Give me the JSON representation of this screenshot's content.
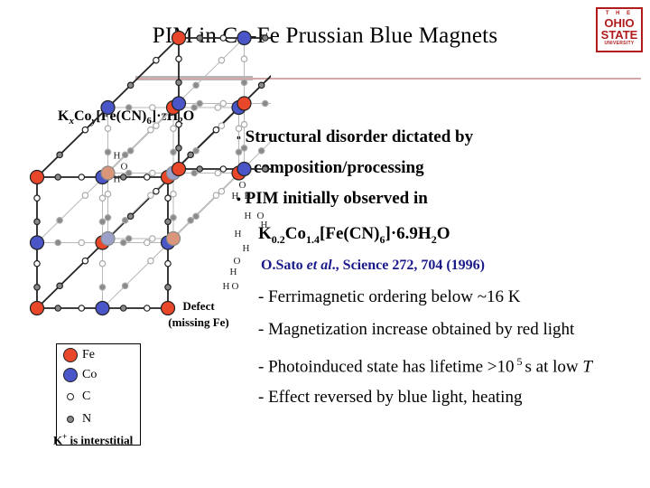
{
  "slide": {
    "title": "PIM in Co-Fe Prussian Blue Magnets",
    "logo": {
      "line1": "T H E",
      "line2": "OHIO",
      "line3": "STATE",
      "line4": "UNIVERSITY"
    },
    "formula": {
      "k": "K",
      "x": "x",
      "co": "Co",
      "y": "y",
      "bracket": "[Fe(CN)",
      "six": "6",
      "close": "]",
      "dot": "·",
      "z": "z",
      "h": "H",
      "two": "2",
      "o": "O"
    },
    "bullets": [
      {
        "marker": "•",
        "line1": "Structural disorder dictated by",
        "line2": "composition/processing"
      },
      {
        "marker": "•",
        "line1": "PIM initially observed in"
      }
    ],
    "compound": {
      "k": "K",
      "k_sub": "0.2",
      "co": "Co",
      "co_sub": "1.4",
      "fe": "[Fe(CN)",
      "six": "6",
      "close": "]",
      "dot": "·",
      "water": "6.9H",
      "two": "2",
      "o": "O"
    },
    "reference": {
      "authors": "O.Sato ",
      "etal": "et al",
      "rest": "., Science 272, 704 (1996)"
    },
    "sub_bullets": [
      "- Ferrimagnetic ordering below ~16 K",
      "- Magnetization increase obtained by red light",
      {
        "a": "- Photoinduced state has lifetime >10",
        "exp": "5",
        "b": "s at low ",
        "t": "T"
      },
      "- Effect reversed by blue light, heating"
    ],
    "defect_label": {
      "line1": "Defect",
      "line2": "(missing Fe)"
    },
    "legend": [
      {
        "label": "Fe",
        "color": "#e8472a"
      },
      {
        "label": "Co",
        "color": "#4a55c8"
      },
      {
        "label": "C",
        "color": "#ffffff"
      },
      {
        "label": "N",
        "color": "#8a8a8a"
      }
    ],
    "k_note": {
      "k": "K",
      "plus": "+",
      "text": " is interstitial"
    },
    "water_labels": {
      "o": "O",
      "h": "H"
    },
    "colors": {
      "fe": "#e8472a",
      "co": "#4a55c8",
      "fe_faded": "#d9967a",
      "co_faded": "#9aa0c8",
      "rule": "#d4a8a8",
      "logo": "#b01c1c"
    }
  }
}
